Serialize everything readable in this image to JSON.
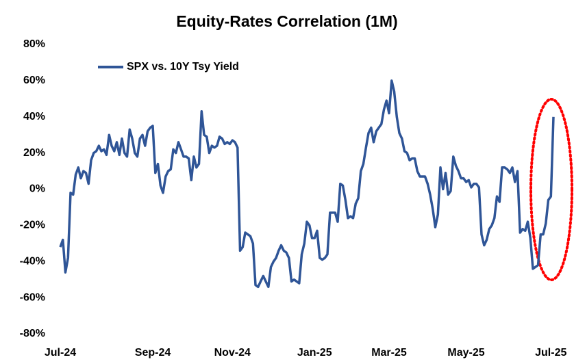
{
  "chart_data": {
    "type": "line",
    "title": "Equity-Rates Correlation (1M)",
    "categories": [
      "Jul-24",
      null,
      null,
      null,
      null,
      null,
      null,
      null,
      null,
      null,
      null,
      null,
      null,
      null,
      null,
      null,
      null,
      null,
      null,
      null,
      null,
      null,
      null,
      null,
      null,
      null,
      null,
      null,
      null,
      null,
      null,
      null,
      null,
      null,
      null,
      null,
      "Sep-24",
      null,
      null,
      null,
      null,
      null,
      null,
      null,
      null,
      null,
      null,
      null,
      null,
      null,
      null,
      null,
      null,
      null,
      null,
      null,
      null,
      null,
      null,
      null,
      null,
      null,
      null,
      null,
      null,
      null,
      null,
      "Nov-24",
      null,
      null,
      null,
      null,
      null,
      null,
      null,
      null,
      null,
      null,
      null,
      null,
      null,
      null,
      null,
      null,
      null,
      null,
      null,
      null,
      null,
      null,
      null,
      null,
      null,
      null,
      null,
      null,
      null,
      null,
      null,
      "Jan-25",
      null,
      null,
      null,
      null,
      null,
      null,
      null,
      null,
      null,
      null,
      null,
      null,
      null,
      null,
      null,
      null,
      null,
      null,
      null,
      null,
      null,
      null,
      null,
      null,
      null,
      null,
      null,
      null,
      "Mar-25",
      null,
      null,
      null,
      null,
      null,
      null,
      null,
      null,
      null,
      null,
      null,
      null,
      null,
      null,
      null,
      null,
      null,
      null,
      null,
      null,
      null,
      null,
      null,
      null,
      null,
      null,
      null,
      null,
      null,
      "May-25",
      null,
      null,
      null,
      null,
      null,
      null,
      null,
      null,
      null,
      null,
      null,
      null,
      null,
      null,
      null,
      null,
      null,
      null,
      null,
      null,
      null,
      null,
      null,
      null,
      null,
      null,
      null,
      null,
      null,
      null,
      null,
      null,
      "Jul-25",
      null
    ],
    "series": [
      {
        "name": "SPX vs. 10Y Tsy Yield",
        "color": "#2f5597",
        "values": [
          -32,
          -28,
          -46,
          -38,
          -2,
          -3,
          8,
          12,
          6,
          10,
          9,
          3,
          16,
          20,
          21,
          24,
          21,
          22,
          19,
          30,
          24,
          21,
          26,
          19,
          28,
          20,
          18,
          33,
          28,
          20,
          18,
          28,
          30,
          24,
          32,
          34,
          35,
          9,
          14,
          2,
          -2,
          7,
          10,
          11,
          22,
          20,
          26,
          22,
          18,
          18,
          17,
          5,
          18,
          12,
          14,
          43,
          30,
          29,
          20,
          24,
          23,
          24,
          29,
          28,
          25,
          26,
          25,
          27,
          26,
          23,
          -34,
          -32,
          -24,
          -25,
          -26,
          -30,
          -53,
          -54,
          -51,
          -48,
          -51,
          -54,
          -43,
          -40,
          -38,
          -34,
          -31,
          -34,
          -35,
          -38,
          -51,
          -50,
          -51,
          -52,
          -36,
          -30,
          -18,
          -20,
          -27,
          -27,
          -23,
          -38,
          -39,
          -38,
          -36,
          -13,
          -13,
          -13,
          -18,
          3,
          2,
          -6,
          -16,
          -15,
          -16,
          -8,
          -5,
          10,
          14,
          23,
          31,
          34,
          26,
          32,
          34,
          36,
          44,
          49,
          42,
          60,
          54,
          40,
          31,
          28,
          21,
          20,
          16,
          17,
          17,
          10,
          7,
          7,
          7,
          3,
          -3,
          -11,
          -21,
          -14,
          12,
          0,
          9,
          -3,
          -1,
          18,
          13,
          10,
          6,
          6,
          4,
          5,
          1,
          3,
          3,
          1,
          -25,
          -31,
          -28,
          -22,
          -20,
          -16,
          -4,
          -7,
          12,
          12,
          11,
          9,
          12,
          4,
          10,
          -24,
          -22,
          -23,
          -18,
          -27,
          -44,
          -43,
          -42,
          -25,
          -25,
          -19,
          -6,
          -4,
          40
        ]
      }
    ],
    "ylim": [
      -80,
      80
    ],
    "yticks": [
      {
        "value": -80,
        "label": "-80%"
      },
      {
        "value": -60,
        "label": "-60%"
      },
      {
        "value": -40,
        "label": "-40%"
      },
      {
        "value": -20,
        "label": "-20%"
      },
      {
        "value": 0,
        "label": "0%"
      },
      {
        "value": 20,
        "label": "20%"
      },
      {
        "value": 40,
        "label": "40%"
      },
      {
        "value": 60,
        "label": "60%"
      },
      {
        "value": 80,
        "label": "80%"
      }
    ],
    "grid": false,
    "legend": "top-left"
  }
}
